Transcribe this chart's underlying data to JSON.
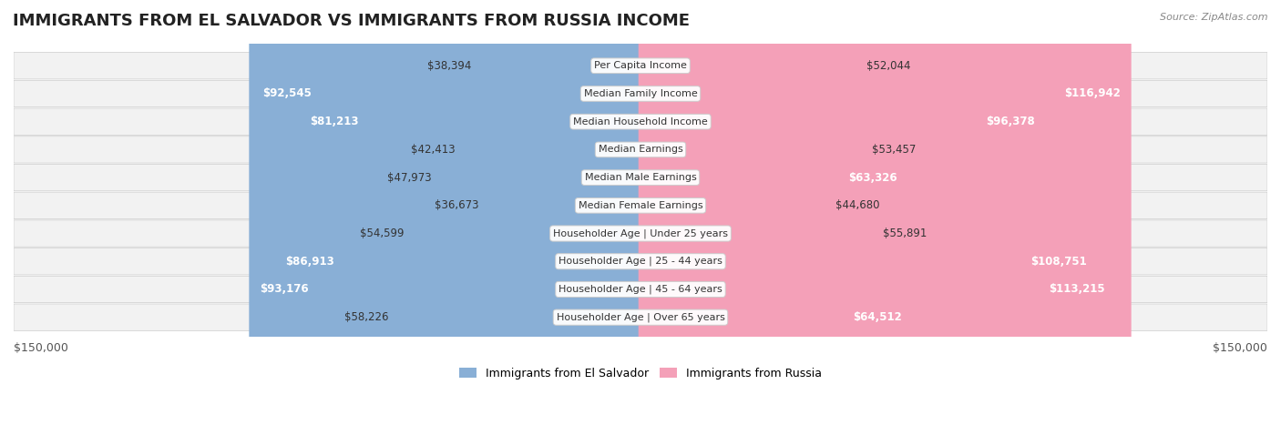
{
  "title": "IMMIGRANTS FROM EL SALVADOR VS IMMIGRANTS FROM RUSSIA INCOME",
  "source": "Source: ZipAtlas.com",
  "categories": [
    "Per Capita Income",
    "Median Family Income",
    "Median Household Income",
    "Median Earnings",
    "Median Male Earnings",
    "Median Female Earnings",
    "Householder Age | Under 25 years",
    "Householder Age | 25 - 44 years",
    "Householder Age | 45 - 64 years",
    "Householder Age | Over 65 years"
  ],
  "el_salvador_values": [
    38394,
    92545,
    81213,
    42413,
    47973,
    36673,
    54599,
    86913,
    93176,
    58226
  ],
  "russia_values": [
    52044,
    116942,
    96378,
    53457,
    63326,
    44680,
    55891,
    108751,
    113215,
    64512
  ],
  "el_salvador_labels": [
    "$38,394",
    "$92,545",
    "$81,213",
    "$42,413",
    "$47,973",
    "$36,673",
    "$54,599",
    "$86,913",
    "$93,176",
    "$58,226"
  ],
  "russia_labels": [
    "$52,044",
    "$116,942",
    "$96,378",
    "$53,457",
    "$63,326",
    "$44,680",
    "$55,891",
    "$108,751",
    "$113,215",
    "$64,512"
  ],
  "color_salvador": "#89afd6",
  "color_russia": "#f4a0b8",
  "color_salvador_dark": "#6b9fd4",
  "color_russia_dark": "#f07099",
  "max_value": 150000,
  "bg_color": "#f5f5f5",
  "row_bg": "#efefef",
  "label_fontsize": 8.5,
  "title_fontsize": 13,
  "legend_color_salvador": "#89afd6",
  "legend_color_russia": "#f4a0b8"
}
